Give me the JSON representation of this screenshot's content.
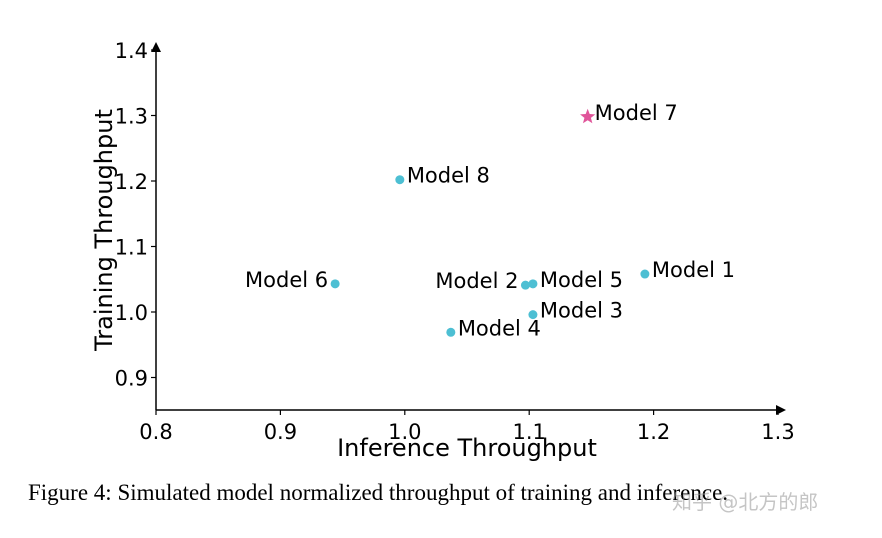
{
  "chart_data": {
    "type": "scatter",
    "xlabel": "Inference Throughput",
    "ylabel": "Training Throughput",
    "xlim": [
      0.8,
      1.3
    ],
    "ylim": [
      0.85,
      1.4
    ],
    "xticks": [
      "0.8",
      "0.9",
      "1.0",
      "1.1",
      "1.2",
      "1.3"
    ],
    "yticks": [
      "0.9",
      "1.0",
      "1.1",
      "1.2",
      "1.3",
      "1.4"
    ],
    "points": [
      {
        "name": "Model 1",
        "x": 1.193,
        "y": 1.058,
        "marker": "dot",
        "label_side": "right"
      },
      {
        "name": "Model 2",
        "x": 1.097,
        "y": 1.041,
        "marker": "dot",
        "label_side": "left"
      },
      {
        "name": "Model 3",
        "x": 1.103,
        "y": 0.996,
        "marker": "dot",
        "label_side": "right"
      },
      {
        "name": "Model 4",
        "x": 1.037,
        "y": 0.969,
        "marker": "dot",
        "label_side": "right"
      },
      {
        "name": "Model 5",
        "x": 1.103,
        "y": 1.043,
        "marker": "dot",
        "label_side": "right"
      },
      {
        "name": "Model 6",
        "x": 0.944,
        "y": 1.043,
        "marker": "dot",
        "label_side": "left"
      },
      {
        "name": "Model 7",
        "x": 1.147,
        "y": 1.298,
        "marker": "star",
        "label_side": "right"
      },
      {
        "name": "Model 8",
        "x": 0.996,
        "y": 1.202,
        "marker": "dot",
        "label_side": "right"
      }
    ],
    "colors": {
      "dot": "#4dbfd3",
      "star": "#e0559a",
      "axis": "#000000"
    }
  },
  "caption": "Figure 4: Simulated model normalized throughput of training and inference.",
  "watermark": "知乎 @北方的郎"
}
